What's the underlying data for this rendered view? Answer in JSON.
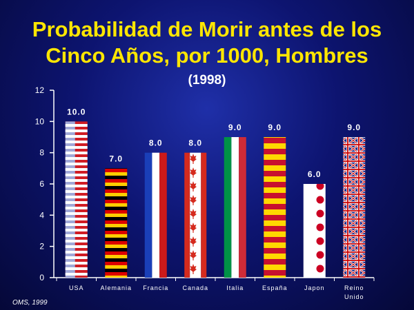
{
  "chart_data": {
    "type": "bar",
    "title_line1": "Probabilidad de Morir antes de los",
    "title_line2": "Cinco Años, por 1000, Hombres",
    "subtitle": "(1998)",
    "source": "OMS, 1999",
    "categories": [
      "USA",
      "Alemania",
      "Francia",
      "Canada",
      "Italia",
      "España",
      "Japon",
      "Reino Unido"
    ],
    "category_lines": [
      [
        "USA"
      ],
      [
        "Alemania"
      ],
      [
        "Francia"
      ],
      [
        "Canada"
      ],
      [
        "Italia"
      ],
      [
        "España"
      ],
      [
        "Japon"
      ],
      [
        "Reino",
        "Unido"
      ]
    ],
    "values": [
      10.0,
      7.0,
      8.0,
      8.0,
      9.0,
      9.0,
      6.0,
      9.0
    ],
    "value_labels": [
      "10.0",
      "7.0",
      "8.0",
      "8.0",
      "9.0",
      "9.0",
      "6.0",
      "9.0"
    ],
    "bar_patterns": [
      "usa-flag",
      "germany-flag",
      "france-flag",
      "canada-flag",
      "italy-flag",
      "spain-flag",
      "japan-flag",
      "uk-flag"
    ],
    "ylim": [
      0,
      12
    ],
    "yticks": [
      0,
      2,
      4,
      6,
      8,
      10,
      12
    ],
    "grid": false,
    "legend": "none",
    "colors": {
      "title": "#ffe600",
      "background": "#0d1470",
      "axis": "#ffffff"
    }
  }
}
